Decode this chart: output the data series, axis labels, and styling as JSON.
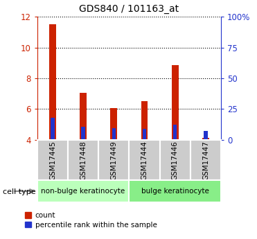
{
  "title": "GDS840 / 101163_at",
  "samples": [
    "GSM17445",
    "GSM17448",
    "GSM17449",
    "GSM17444",
    "GSM17446",
    "GSM17447"
  ],
  "red_values": [
    11.5,
    7.05,
    6.05,
    6.5,
    8.85,
    4.12
  ],
  "blue_values": [
    5.45,
    4.85,
    4.78,
    4.72,
    5.0,
    4.57
  ],
  "ylim_left": [
    4,
    12
  ],
  "ylim_right": [
    0,
    100
  ],
  "yticks_left": [
    4,
    6,
    8,
    10,
    12
  ],
  "yticks_right": [
    0,
    25,
    50,
    75,
    100
  ],
  "ytick_labels_right": [
    "0",
    "25",
    "50",
    "75",
    "100%"
  ],
  "groups": [
    {
      "label": "non-bulge keratinocyte",
      "indices": [
        0,
        1,
        2
      ],
      "color": "#bbffbb"
    },
    {
      "label": "bulge keratinocyte",
      "indices": [
        3,
        4,
        5
      ],
      "color": "#88ee88"
    }
  ],
  "group_row_label": "cell type",
  "bar_width": 0.22,
  "blue_bar_width": 0.12,
  "red_color": "#cc2200",
  "blue_color": "#2233cc",
  "tick_bg_color": "#cccccc",
  "tick_edge_color": "#ffffff",
  "legend_red_label": "count",
  "legend_blue_label": "percentile rank within the sample",
  "left_tick_color": "#cc2200",
  "right_tick_color": "#2233cc",
  "grid_linestyle": "dotted",
  "grid_linewidth": 0.8,
  "spine_color": "#888888"
}
